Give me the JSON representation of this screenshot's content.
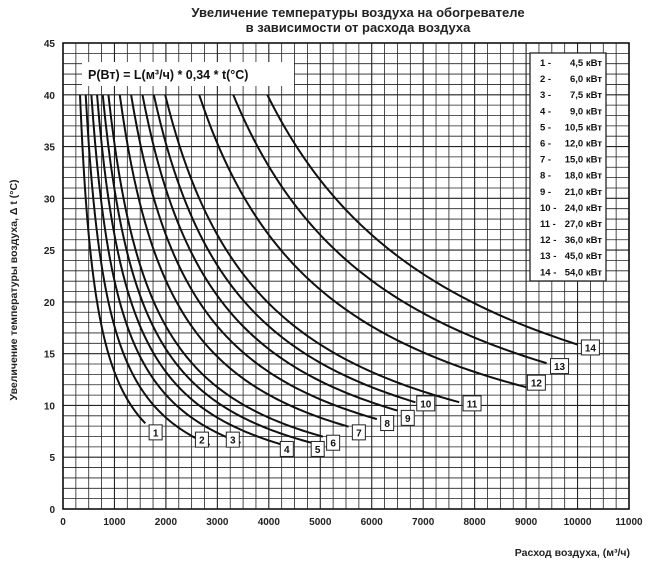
{
  "chart_data": {
    "type": "line",
    "title_line1": "Увеличение температуры воздуха на обогревателе",
    "title_line2": "в зависимости от расхода воздуха",
    "xlabel": "Расход воздуха, (м³/ч)",
    "ylabel": "Увеличение температуры воздуха,  Δ t (°С)",
    "formula": "P(Вт) = L(м³/ч) * 0,34 * t(°С)",
    "xlim": [
      0,
      11000
    ],
    "ylim": [
      0,
      45
    ],
    "x_ticks": [
      "0",
      "1000",
      "2000",
      "3000",
      "4000",
      "5000",
      "6000",
      "7000",
      "8000",
      "9000",
      "10000",
      "11000"
    ],
    "y_ticks": [
      "0",
      "5",
      "10",
      "15",
      "20",
      "25",
      "30",
      "35",
      "40",
      "45"
    ],
    "grid": true,
    "legend_position": "top-right",
    "series": [
      {
        "name": "4,5 кВт",
        "number": "1",
        "power_w": 4500,
        "x_end": 1600,
        "label_x": 1800,
        "label_y": 7.4
      },
      {
        "name": "6,0 кВт",
        "number": "2",
        "power_w": 6000,
        "x_end": 2850,
        "label_x": 2700,
        "label_y": 6.7
      },
      {
        "name": "7,5 кВт",
        "number": "3",
        "power_w": 7500,
        "x_end": 3450,
        "label_x": 3300,
        "label_y": 6.7
      },
      {
        "name": "9,0 кВт",
        "number": "4",
        "power_w": 9000,
        "x_end": 4300,
        "label_x": 4350,
        "label_y": 5.8
      },
      {
        "name": "10,5 кВт",
        "number": "5",
        "power_w": 10500,
        "x_end": 4900,
        "label_x": 4950,
        "label_y": 5.8
      },
      {
        "name": "12,0 кВт",
        "number": "6",
        "power_w": 12000,
        "x_end": 5050,
        "label_x": 5250,
        "label_y": 6.4
      },
      {
        "name": "15,0 кВт",
        "number": "7",
        "power_w": 15000,
        "x_end": 5550,
        "label_x": 5750,
        "label_y": 7.4
      },
      {
        "name": "18,0 кВт",
        "number": "8",
        "power_w": 18000,
        "x_end": 6100,
        "label_x": 6300,
        "label_y": 8.3
      },
      {
        "name": "21,0 кВт",
        "number": "9",
        "power_w": 21000,
        "x_end": 6500,
        "label_x": 6700,
        "label_y": 8.8
      },
      {
        "name": "24,0 кВт",
        "number": "10",
        "power_w": 24000,
        "x_end": 6850,
        "label_x": 7050,
        "label_y": 10.2
      },
      {
        "name": "27,0 кВт",
        "number": "11",
        "power_w": 27000,
        "x_end": 7700,
        "label_x": 7950,
        "label_y": 10.2
      },
      {
        "name": "36,0 кВт",
        "number": "12",
        "power_w": 36000,
        "x_end": 9000,
        "label_x": 9200,
        "label_y": 12.2
      },
      {
        "name": "45,0 кВт",
        "number": "13",
        "power_w": 45000,
        "x_end": 9400,
        "label_x": 9650,
        "label_y": 13.8
      },
      {
        "name": "54,0 кВт",
        "number": "14",
        "power_w": 54000,
        "x_end": 10000,
        "label_x": 10250,
        "label_y": 15.6
      }
    ],
    "curve_formula_note": "t = P / (L * 0,34)",
    "curve_y_start": 40
  }
}
